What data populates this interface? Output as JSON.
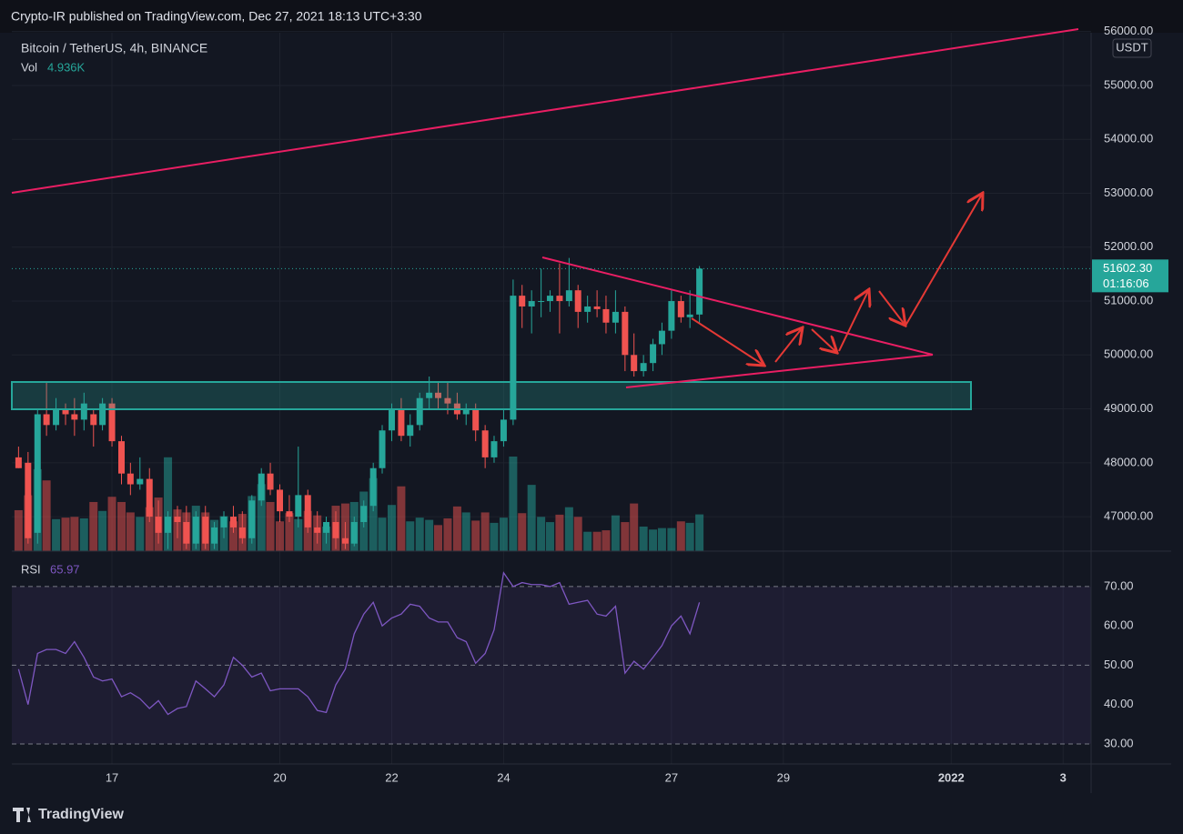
{
  "header": {
    "published": "Crypto-IR published on TradingView.com, Dec 27, 2021 18:13 UTC+3:30",
    "symbol": "Bitcoin / TetherUS, 4h, BINANCE",
    "vol_label": "Vol",
    "vol_value": "4.936K",
    "currency": "USDT"
  },
  "footer": {
    "brand": "TradingView"
  },
  "chart_data": {
    "type": "candlestick",
    "up_color": "#26a69a",
    "down_color": "#ef5350",
    "grid": true,
    "xlim": [
      15.21,
      34.5
    ],
    "xticks": [
      17,
      20,
      22,
      24,
      27,
      29,
      {
        "value": 32,
        "label": "2022"
      },
      {
        "value": 34,
        "label": "3"
      }
    ],
    "ylim": [
      46360,
      56080
    ],
    "yticks": [
      {
        "value": 47000,
        "label": "47000.00"
      },
      {
        "value": 48000,
        "label": "48000.00"
      },
      {
        "value": 49000,
        "label": "49000.00"
      },
      {
        "value": 50000,
        "label": "50000.00"
      },
      {
        "value": 51000,
        "label": "51000.00"
      },
      {
        "value": 52000,
        "label": "52000.00"
      },
      {
        "value": 53000,
        "label": "53000.00"
      },
      {
        "value": 54000,
        "label": "54000.00"
      },
      {
        "value": 55000,
        "label": "55000.00"
      },
      {
        "value": 56000,
        "label": "56000.00"
      }
    ],
    "last_price": {
      "value": 51602.3,
      "label": "51602.30"
    },
    "countdown": "01:16:06",
    "x": [
      15.33,
      15.5,
      15.67,
      15.83,
      16,
      16.17,
      16.33,
      16.5,
      16.67,
      16.83,
      17,
      17.17,
      17.33,
      17.5,
      17.67,
      17.83,
      18,
      18.17,
      18.33,
      18.5,
      18.67,
      18.83,
      19,
      19.17,
      19.33,
      19.5,
      19.67,
      19.83,
      20,
      20.17,
      20.33,
      20.5,
      20.67,
      20.83,
      21,
      21.17,
      21.33,
      21.5,
      21.67,
      21.83,
      22,
      22.17,
      22.33,
      22.5,
      22.67,
      22.83,
      23,
      23.17,
      23.33,
      23.5,
      23.67,
      23.83,
      24,
      24.17,
      24.33,
      24.5,
      24.67,
      24.83,
      25,
      25.17,
      25.33,
      25.5,
      25.67,
      25.83,
      26,
      26.17,
      26.33,
      26.5,
      26.67,
      26.83,
      27,
      27.17,
      27.33,
      27.5
    ],
    "open": [
      48100,
      48000,
      46700,
      48900,
      48700,
      49000,
      48900,
      48800,
      48900,
      48700,
      49100,
      48400,
      47800,
      47600,
      47700,
      47000,
      46700,
      47000,
      46900,
      46500,
      47000,
      46500,
      46800,
      47000,
      46800,
      46600,
      47300,
      47800,
      47500,
      47100,
      47000,
      47400,
      46800,
      46700,
      46900,
      46600,
      46500,
      46900,
      47200,
      47900,
      48600,
      49000,
      48500,
      48700,
      49200,
      49300,
      49200,
      49100,
      48900,
      49000,
      48600,
      48100,
      48400,
      48800,
      51100,
      50900,
      51000,
      51000,
      51100,
      51000,
      51200,
      50800,
      50900,
      50850,
      50600,
      50800,
      50000,
      49700,
      49850,
      50200,
      50450,
      51000,
      50700,
      50750
    ],
    "high": [
      48300,
      48200,
      49000,
      49500,
      49200,
      49100,
      49200,
      49300,
      49000,
      49200,
      49200,
      48500,
      48000,
      48100,
      47900,
      47300,
      47100,
      47200,
      47200,
      47100,
      47200,
      46900,
      47100,
      47200,
      47100,
      47400,
      47900,
      48000,
      47600,
      47400,
      48300,
      47500,
      47100,
      47000,
      47100,
      46900,
      47000,
      47300,
      48000,
      48700,
      49100,
      49200,
      48900,
      49300,
      49600,
      49500,
      49500,
      49300,
      49100,
      49100,
      48700,
      48500,
      49000,
      51400,
      51300,
      51200,
      51600,
      51200,
      51700,
      51800,
      51300,
      51100,
      51200,
      51100,
      51200,
      50900,
      50400,
      50000,
      50300,
      50600,
      51200,
      51100,
      51200,
      51650
    ],
    "low": [
      47900,
      46500,
      46500,
      48500,
      48600,
      48700,
      48500,
      48600,
      48300,
      48600,
      48300,
      47600,
      47400,
      47500,
      46900,
      46500,
      46400,
      46600,
      46400,
      46400,
      46400,
      46400,
      46600,
      46700,
      46500,
      46500,
      47200,
      47400,
      46900,
      46900,
      46800,
      46700,
      46500,
      46500,
      46400,
      46400,
      46450,
      46800,
      47100,
      47800,
      48400,
      48400,
      48300,
      48600,
      49000,
      49000,
      48900,
      48800,
      48700,
      48400,
      47900,
      48000,
      48300,
      48700,
      50500,
      50400,
      50700,
      50800,
      50400,
      50900,
      50500,
      50600,
      50700,
      50400,
      50400,
      49700,
      49600,
      49600,
      49700,
      50000,
      50300,
      50600,
      50500,
      50600
    ],
    "close": [
      47900,
      46600,
      48900,
      48700,
      49000,
      48900,
      48800,
      49100,
      48700,
      49100,
      48400,
      47800,
      47600,
      47700,
      47000,
      46700,
      47000,
      46900,
      46500,
      47000,
      46500,
      46800,
      47000,
      46800,
      46600,
      47300,
      47800,
      47500,
      47100,
      47000,
      47400,
      46800,
      46700,
      46900,
      46600,
      46500,
      46900,
      47200,
      47900,
      48600,
      49000,
      48500,
      48700,
      49200,
      49300,
      49200,
      49100,
      48900,
      49000,
      48600,
      48100,
      48400,
      48800,
      51100,
      50900,
      51000,
      51000,
      51100,
      51000,
      51200,
      50800,
      50900,
      50850,
      50600,
      50800,
      50000,
      49700,
      49850,
      50200,
      50450,
      51000,
      50700,
      50750,
      51602.3
    ],
    "volume": [
      5.5,
      7.5,
      11,
      9.5,
      4.3,
      4.5,
      4.6,
      4.4,
      6.6,
      5.4,
      7.3,
      6.6,
      5.2,
      4.6,
      5.9,
      7.2,
      12.6,
      5.6,
      5.2,
      6.1,
      5.2,
      4.2,
      4.7,
      4.0,
      5.0,
      7.4,
      9.0,
      6.6,
      4.0,
      5.1,
      4.3,
      5.4,
      4.8,
      3.3,
      6.1,
      6.4,
      6.6,
      8.0,
      9.8,
      4.5,
      6.2,
      8.7,
      4.0,
      4.5,
      4.2,
      3.5,
      4.4,
      6.0,
      5.2,
      4.1,
      5.2,
      3.8,
      4.5,
      12.7,
      5.1,
      8.9,
      4.6,
      3.9,
      4.9,
      5.9,
      4.6,
      2.6,
      2.6,
      2.8,
      4.8,
      3.9,
      6.4,
      3.3,
      2.9,
      3.1,
      3.1,
      4.0,
      3.8,
      4.936
    ],
    "rsi": {
      "name": "RSI",
      "color": "#7e57c2",
      "ylim": [
        24.9,
        79
      ],
      "yticks": [
        {
          "value": 30,
          "label": "30.00"
        },
        {
          "value": 40,
          "label": "40.00"
        },
        {
          "value": 50,
          "label": "50.00"
        },
        {
          "value": 60,
          "label": "60.00"
        },
        {
          "value": 70,
          "label": "70.00"
        }
      ],
      "bands": [
        30,
        50,
        70
      ],
      "values": [
        49,
        40,
        53,
        54,
        54,
        53,
        56,
        52,
        47,
        46,
        46.5,
        42,
        43,
        41.5,
        39,
        41,
        37.5,
        39,
        39.5,
        46,
        44,
        42,
        45,
        52,
        50,
        47,
        48,
        43.5,
        44,
        44,
        44,
        42,
        38.5,
        38,
        45,
        49,
        58,
        63,
        66,
        60,
        62,
        63,
        65.5,
        65,
        62,
        61,
        61,
        57,
        56,
        50.5,
        53,
        59,
        73.5,
        70,
        71,
        70.5,
        70.5,
        70,
        71,
        65.5,
        66,
        66.5,
        63,
        62.5,
        65,
        48,
        51,
        49,
        52,
        55,
        60,
        62.5,
        58,
        65.97
      ]
    }
  }
}
